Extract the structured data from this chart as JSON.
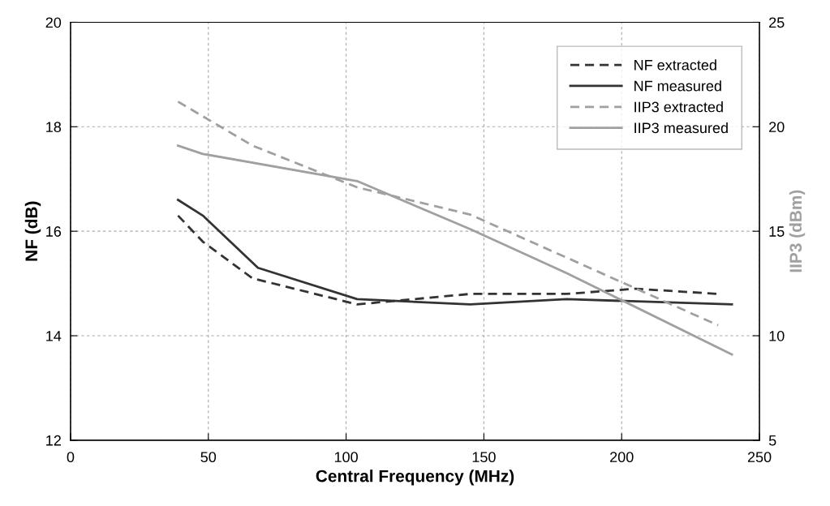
{
  "chart_data": {
    "type": "line",
    "xlabel": "Central Frequency (MHz)",
    "ylabel": "NF (dB)",
    "y2label": "IIP3 (dBm)",
    "xlim": [
      0,
      250
    ],
    "xticks": [
      0,
      50,
      100,
      150,
      200,
      250
    ],
    "ylim": [
      12,
      20
    ],
    "yticks": [
      12,
      14,
      16,
      18,
      20
    ],
    "y2lim": [
      5,
      25
    ],
    "y2ticks": [
      5,
      10,
      15,
      20,
      25
    ],
    "grid": true,
    "legend": "top right",
    "marker": "none",
    "series": [
      {
        "name": "NF extracted",
        "color": "#333333",
        "line_style": "dashed",
        "x": [
          39,
          48,
          66,
          104,
          145,
          180,
          205,
          235
        ],
        "values": [
          16.3,
          15.8,
          15.1,
          14.6,
          14.8,
          14.8,
          14.9,
          14.8
        ]
      },
      {
        "name": "NF measured",
        "color": "#333333",
        "line_style": "solid",
        "x": [
          39,
          48,
          68,
          104,
          145,
          180,
          240
        ],
        "values": [
          16.6,
          16.3,
          15.3,
          14.7,
          14.6,
          14.7,
          14.6
        ]
      },
      {
        "name": "IIP3 extracted",
        "color": "#a0a0a0",
        "line_style": "dashed",
        "axis": "y2",
        "x": [
          39,
          66,
          104,
          145,
          235
        ],
        "values": [
          21.2,
          19.1,
          17.1,
          15.8,
          10.5
        ]
      },
      {
        "name": "IIP3 measured",
        "color": "#a0a0a0",
        "line_style": "solid",
        "axis": "y2",
        "x": [
          39,
          48,
          104,
          145,
          180,
          240
        ],
        "values": [
          19.1,
          18.7,
          17.4,
          15.1,
          13.0,
          9.1
        ]
      }
    ]
  }
}
